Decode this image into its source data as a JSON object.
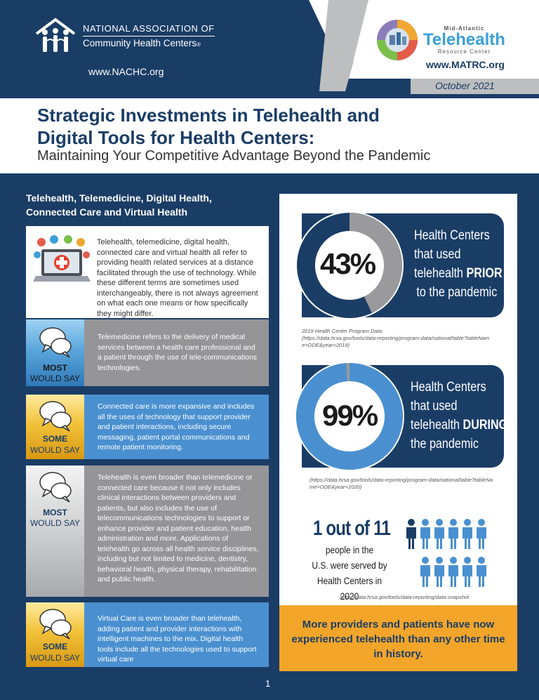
{
  "header": {
    "nachc": {
      "line1": "NATIONAL ASSOCIATION OF",
      "line2": "Community Health Centers",
      "reg": "®",
      "url": "www.NACHC.org"
    },
    "matrc": {
      "top": "Mid-Atlantic",
      "name": "Telehealth",
      "bottom": "Resource Center",
      "url": "www.MATRC.org"
    },
    "date": "October 2021"
  },
  "title": {
    "line1": "Strategic Investments in Telehealth and",
    "line2": "Digital Tools for Health Centers:",
    "subtitle": "Maintaining Your Competitive Advantage Beyond the Pandemic"
  },
  "left": {
    "heading1": "Telehealth, Telemedicine, Digital Health,",
    "heading2": "Connected Care and Virtual Health",
    "intro": "Telehealth, telemedicine, digital health, connected care and virtual health all refer to providing health related services at a distance facilitated through the use of technology. While these different terms are sometimes used interchangeably, there is not always agreement on what each one means or how specifically they might differ.",
    "rows": [
      {
        "badge_top": "MOST",
        "badge_bottom": "WOULD SAY",
        "text": "Telemedicine refers to the delivery of medical services between a health care professional and a patient through the use of tele-communications technologies."
      },
      {
        "badge_top": "SOME",
        "badge_bottom": "WOULD SAY",
        "text": "Connected care is more expansive and includes all the uses of technology that support provider and patient interactions, including secure messaging, patient portal communications and remote patient monitoring."
      },
      {
        "badge_top": "MOST",
        "badge_bottom": "WOULD SAY",
        "text": "Telehealth is even broader than telemedicine or connected care because it not only includes clinical interactions between providers and patients, but also includes the use of telecommunications technologies to support or enhance provider and patient education, health administration and more. Applications of telehealth go across all health service disciplines, including but not limited to medicine, dentistry, behavioral health, physical therapy, rehabilitation and public health."
      },
      {
        "badge_top": "SOME",
        "badge_bottom": "WOULD SAY",
        "text": "Virtual Care is even broader than telehealth, adding patient and provider interactions with intelligent machines to the mix. Digital health tools include all the technologies used to support virtual care"
      }
    ],
    "page_number": "1"
  },
  "right": {
    "stat1": {
      "percent": "43%",
      "value": 43,
      "l1": "Health Centers",
      "l2": "that used",
      "l3a": "telehealth ",
      "l3b": "PRIOR",
      "l4": "to the pandemic",
      "source1": "2019 Health Center Program Data:",
      "source2": "(https://data.hrsa.gov/tools/data-reporting/program-data/national/table?tableNam",
      "source3": "e=ODE&year=2019)"
    },
    "stat2": {
      "percent": "99%",
      "value": 99,
      "l1": "Health Centers",
      "l2": "that used",
      "l3a": "telehealth ",
      "l3b": "DURING",
      "l4": "the pandemic",
      "source1": "(https://data.hrsa.gov/tools/data-reporting/program-data/national/table?tableNa",
      "source2": "me=ODE&year=2020)"
    },
    "people": {
      "count": "1 out of 11",
      "l1": "people in the",
      "l2": "U.S. were served by",
      "l3": "Health Centers in 2020",
      "source": "https://data.hrsa.gov/tools/data-reporting/data-snapshot",
      "highlighted": 1,
      "total": 11
    },
    "callout": "More providers and patients have now experienced telehealth than any other time in history."
  },
  "colors": {
    "navy": "#1a3d66",
    "blue": "#4a90d0",
    "gray": "#959597",
    "gold": "#f3a52a"
  }
}
